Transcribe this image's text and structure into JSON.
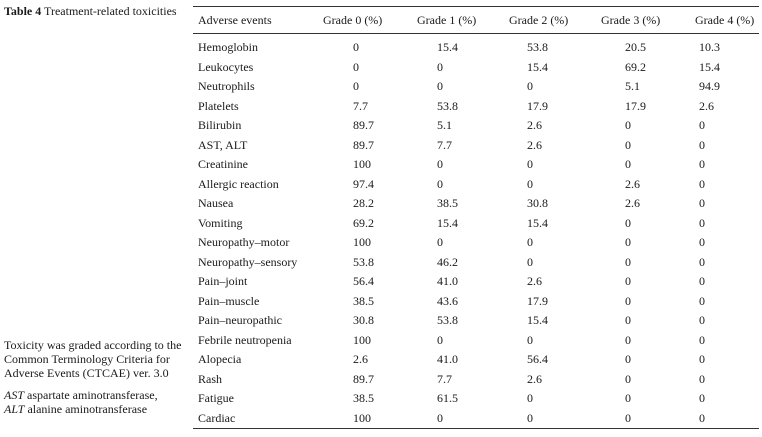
{
  "caption": {
    "label": "Table 4",
    "text": "Treatment-related toxicities"
  },
  "footnote": {
    "text": "Toxicity was graded according to the Common Terminology Criteria for Adverse Events (CTCAE) ver. 3.0",
    "abbr1_term": "AST",
    "abbr1_def": "aspartate aminotransferase,",
    "abbr2_term": "ALT",
    "abbr2_def": "alanine aminotransferase"
  },
  "table": {
    "headers": [
      "Adverse events",
      "Grade 0 (%)",
      "Grade 1 (%)",
      "Grade 2 (%)",
      "Grade 3 (%)",
      "Grade 4 (%)"
    ],
    "rows": [
      {
        "event": "Hemoglobin",
        "g0": "0",
        "g1": "15.4",
        "g2": "53.8",
        "g3": "20.5",
        "g4": "10.3"
      },
      {
        "event": "Leukocytes",
        "g0": "0",
        "g1": "0",
        "g2": "15.4",
        "g3": "69.2",
        "g4": "15.4"
      },
      {
        "event": "Neutrophils",
        "g0": "0",
        "g1": "0",
        "g2": "0",
        "g3": "5.1",
        "g4": "94.9"
      },
      {
        "event": "Platelets",
        "g0": "7.7",
        "g1": "53.8",
        "g2": "17.9",
        "g3": "17.9",
        "g4": "2.6"
      },
      {
        "event": "Bilirubin",
        "g0": "89.7",
        "g1": "5.1",
        "g2": "2.6",
        "g3": "0",
        "g4": "0"
      },
      {
        "event": "AST, ALT",
        "g0": "89.7",
        "g1": "7.7",
        "g2": "2.6",
        "g3": "0",
        "g4": "0"
      },
      {
        "event": "Creatinine",
        "g0": "100",
        "g1": "0",
        "g2": "0",
        "g3": "0",
        "g4": "0"
      },
      {
        "event": "Allergic reaction",
        "g0": "97.4",
        "g1": "0",
        "g2": "0",
        "g3": "2.6",
        "g4": "0"
      },
      {
        "event": "Nausea",
        "g0": "28.2",
        "g1": "38.5",
        "g2": "30.8",
        "g3": "2.6",
        "g4": "0"
      },
      {
        "event": "Vomiting",
        "g0": "69.2",
        "g1": "15.4",
        "g2": "15.4",
        "g3": "0",
        "g4": "0"
      },
      {
        "event": "Neuropathy–motor",
        "g0": "100",
        "g1": "0",
        "g2": "0",
        "g3": "0",
        "g4": "0"
      },
      {
        "event": "Neuropathy–sensory",
        "g0": "53.8",
        "g1": "46.2",
        "g2": "0",
        "g3": "0",
        "g4": "0"
      },
      {
        "event": "Pain–joint",
        "g0": "56.4",
        "g1": "41.0",
        "g2": "2.6",
        "g3": "0",
        "g4": "0"
      },
      {
        "event": "Pain–muscle",
        "g0": "38.5",
        "g1": "43.6",
        "g2": "17.9",
        "g3": "0",
        "g4": "0"
      },
      {
        "event": "Pain–neuropathic",
        "g0": "30.8",
        "g1": "53.8",
        "g2": "15.4",
        "g3": "0",
        "g4": "0"
      },
      {
        "event": "Febrile neutropenia",
        "g0": "100",
        "g1": "0",
        "g2": "0",
        "g3": "0",
        "g4": "0"
      },
      {
        "event": "Alopecia",
        "g0": "2.6",
        "g1": "41.0",
        "g2": "56.4",
        "g3": "0",
        "g4": "0"
      },
      {
        "event": "Rash",
        "g0": "89.7",
        "g1": "7.7",
        "g2": "2.6",
        "g3": "0",
        "g4": "0"
      },
      {
        "event": "Fatigue",
        "g0": "38.5",
        "g1": "61.5",
        "g2": "0",
        "g3": "0",
        "g4": "0"
      },
      {
        "event": "Cardiac",
        "g0": "100",
        "g1": "0",
        "g2": "0",
        "g3": "0",
        "g4": "0"
      }
    ]
  }
}
